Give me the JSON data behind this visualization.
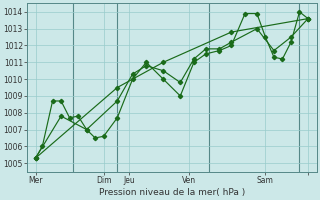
{
  "title": "",
  "xlabel": "Pression niveau de la mer( hPa )",
  "ylabel": "",
  "bg_color": "#cce8e8",
  "grid_color": "#99cccc",
  "line_color": "#1a6b1a",
  "ylim": [
    1004.5,
    1014.5
  ],
  "yticks": [
    1005,
    1006,
    1007,
    1008,
    1009,
    1010,
    1011,
    1012,
    1013,
    1014
  ],
  "xlim": [
    0,
    17
  ],
  "x_tick_positions": [
    0.5,
    4.5,
    6.0,
    9.5,
    14.0,
    16.5
  ],
  "x_tick_labels": [
    "Mer",
    "Dim",
    "Jeu",
    "Ven",
    "Sam",
    ""
  ],
  "vlines": [
    2.7,
    5.3,
    10.7,
    16.0
  ],
  "series1_x": [
    0.5,
    0.9,
    1.5,
    2.0,
    2.5,
    3.0,
    3.5,
    4.0,
    4.5,
    5.3,
    6.2,
    7.0,
    8.0,
    9.0,
    9.8,
    10.5,
    11.3,
    12.0,
    12.8,
    13.5,
    14.0,
    14.5,
    15.0,
    15.5,
    16.0,
    16.5
  ],
  "series1_y": [
    1005.3,
    1006.0,
    1008.7,
    1008.7,
    1007.7,
    1007.8,
    1007.0,
    1006.5,
    1006.6,
    1007.7,
    1010.0,
    1011.0,
    1010.0,
    1009.0,
    1011.0,
    1011.5,
    1011.7,
    1012.0,
    1013.9,
    1013.9,
    1012.5,
    1011.3,
    1011.2,
    1012.2,
    1014.0,
    1013.6
  ],
  "series2_x": [
    0.5,
    2.0,
    3.5,
    5.3,
    6.2,
    7.0,
    8.0,
    9.0,
    9.8,
    10.5,
    11.3,
    12.0,
    13.5,
    14.5,
    15.5,
    16.5
  ],
  "series2_y": [
    1005.3,
    1007.8,
    1007.0,
    1008.7,
    1010.3,
    1010.8,
    1010.5,
    1009.8,
    1011.2,
    1011.8,
    1011.8,
    1012.2,
    1013.0,
    1011.7,
    1012.5,
    1013.6
  ],
  "series3_x": [
    0.5,
    5.3,
    8.0,
    12.0,
    16.5
  ],
  "series3_y": [
    1005.3,
    1009.5,
    1011.0,
    1012.8,
    1013.6
  ],
  "figsize": [
    3.2,
    2.0
  ],
  "dpi": 100
}
